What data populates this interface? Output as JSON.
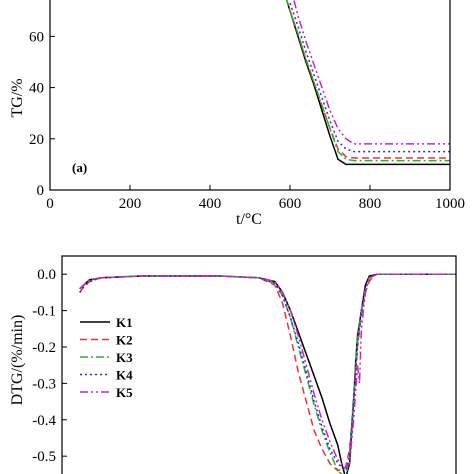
{
  "chart_data": [
    {
      "type": "line",
      "panel_label": "(a)",
      "xlabel": "t/°C",
      "ylabel": "TG/%",
      "xlim": [
        0,
        1000
      ],
      "ylim": [
        0,
        75
      ],
      "xticks": [
        "0",
        "200",
        "400",
        "600",
        "800",
        "1000"
      ],
      "yticks": [
        "0",
        "20",
        "40",
        "60"
      ],
      "series": [
        {
          "name": "K1",
          "color": "#000000",
          "dash": "solid",
          "x": [
            590,
            600,
            620,
            640,
            660,
            680,
            700,
            720,
            740,
            760,
            800,
            900,
            1000
          ],
          "y": [
            75,
            70,
            60,
            50,
            41,
            31,
            21,
            12,
            10,
            10,
            10,
            10,
            10
          ]
        },
        {
          "name": "K2",
          "color": "#e8343a",
          "dash": "dashed",
          "x": [
            590,
            600,
            620,
            640,
            660,
            680,
            700,
            720,
            740,
            760,
            800,
            900,
            1000
          ],
          "y": [
            75,
            70,
            61,
            51,
            42,
            33,
            24,
            16,
            13,
            12.5,
            12.5,
            12.5,
            12.5
          ]
        },
        {
          "name": "K3",
          "color": "#1fb81f",
          "dash": "dashdot",
          "x": [
            590,
            600,
            620,
            640,
            660,
            680,
            700,
            720,
            740,
            760,
            800,
            900,
            1000
          ],
          "y": [
            75,
            70,
            61,
            51,
            42,
            33,
            24,
            15,
            12,
            11.5,
            11.5,
            11.5,
            11.5
          ]
        },
        {
          "name": "K4",
          "color": "#2b2bd6",
          "dash": "dotted",
          "x": [
            600,
            620,
            640,
            660,
            680,
            700,
            720,
            740,
            760,
            800,
            900,
            1000
          ],
          "y": [
            73,
            64,
            54,
            45,
            36,
            27,
            19,
            16,
            15,
            15,
            15,
            15
          ]
        },
        {
          "name": "K5",
          "color": "#cc1fcc",
          "dash": "dashdotdot",
          "x": [
            610,
            620,
            640,
            660,
            680,
            700,
            720,
            740,
            760,
            800,
            900,
            1000
          ],
          "y": [
            74,
            68,
            58,
            49,
            40,
            31,
            24,
            20,
            18,
            18,
            18,
            18
          ]
        }
      ]
    },
    {
      "type": "line",
      "xlabel": "",
      "ylabel": "DTG/(%/min)",
      "xlim": [
        0,
        1000
      ],
      "ylim": [
        -0.56,
        0.05
      ],
      "yticks": [
        "0.0",
        "-0.1",
        "-0.2",
        "-0.3",
        "-0.4",
        "-0.5"
      ],
      "legend": {
        "position": "left-middle",
        "entries": [
          "K1",
          "K2",
          "K3",
          "K4",
          "K5"
        ]
      },
      "series": [
        {
          "name": "K1",
          "color": "#000000",
          "dash": "solid",
          "x": [
            45,
            55,
            70,
            100,
            200,
            400,
            500,
            540,
            560,
            580,
            600,
            620,
            640,
            660,
            680,
            700,
            710,
            720,
            730,
            740,
            745,
            750,
            760,
            770,
            780,
            800,
            900,
            1000
          ],
          "y": [
            -0.04,
            -0.03,
            -0.015,
            -0.01,
            -0.005,
            -0.005,
            -0.01,
            -0.02,
            -0.05,
            -0.1,
            -0.16,
            -0.22,
            -0.28,
            -0.34,
            -0.41,
            -0.47,
            -0.52,
            -0.56,
            -0.52,
            -0.35,
            -0.25,
            -0.17,
            -0.1,
            -0.03,
            -0.005,
            0,
            0,
            0
          ]
        },
        {
          "name": "K2",
          "color": "#e8343a",
          "dash": "dashed",
          "x": [
            45,
            55,
            70,
            100,
            200,
            400,
            500,
            540,
            560,
            580,
            600,
            620,
            640,
            660,
            680,
            700,
            720,
            730,
            740,
            750,
            760,
            770,
            780,
            790,
            800,
            900,
            1000
          ],
          "y": [
            -0.05,
            -0.035,
            -0.02,
            -0.01,
            -0.005,
            -0.005,
            -0.01,
            -0.03,
            -0.08,
            -0.17,
            -0.27,
            -0.35,
            -0.43,
            -0.48,
            -0.52,
            -0.54,
            -0.53,
            -0.48,
            -0.35,
            -0.2,
            -0.11,
            -0.05,
            -0.02,
            -0.005,
            0,
            0,
            0
          ]
        },
        {
          "name": "K3",
          "color": "#1fb81f",
          "dash": "dashdot",
          "x": [
            45,
            55,
            70,
            100,
            200,
            400,
            500,
            540,
            560,
            580,
            600,
            620,
            640,
            660,
            680,
            700,
            720,
            730,
            740,
            750,
            760,
            770,
            780,
            800,
            900,
            1000
          ],
          "y": [
            -0.04,
            -0.03,
            -0.015,
            -0.01,
            -0.005,
            -0.005,
            -0.01,
            -0.025,
            -0.06,
            -0.12,
            -0.2,
            -0.28,
            -0.36,
            -0.43,
            -0.49,
            -0.54,
            -0.56,
            -0.5,
            -0.33,
            -0.18,
            -0.1,
            -0.04,
            -0.01,
            0,
            0,
            0
          ]
        },
        {
          "name": "K4",
          "color": "#2b2bd6",
          "dash": "dotted",
          "x": [
            45,
            55,
            70,
            100,
            200,
            400,
            500,
            540,
            560,
            580,
            600,
            620,
            640,
            660,
            680,
            700,
            720,
            730,
            740,
            750,
            760,
            770,
            780,
            800,
            900,
            1000
          ],
          "y": [
            -0.05,
            -0.035,
            -0.02,
            -0.01,
            -0.005,
            -0.005,
            -0.01,
            -0.025,
            -0.06,
            -0.12,
            -0.19,
            -0.27,
            -0.35,
            -0.42,
            -0.48,
            -0.52,
            -0.54,
            -0.5,
            -0.35,
            -0.2,
            -0.1,
            -0.04,
            -0.01,
            0,
            0,
            0
          ]
        },
        {
          "name": "K5",
          "color": "#cc1fcc",
          "dash": "dashdotdot",
          "x": [
            45,
            55,
            70,
            100,
            200,
            400,
            500,
            540,
            560,
            580,
            600,
            620,
            640,
            660,
            680,
            700,
            720,
            730,
            740,
            750,
            755,
            760,
            770,
            780,
            800,
            900,
            1000
          ],
          "y": [
            -0.04,
            -0.03,
            -0.015,
            -0.01,
            -0.005,
            -0.005,
            -0.01,
            -0.02,
            -0.05,
            -0.1,
            -0.17,
            -0.25,
            -0.33,
            -0.4,
            -0.46,
            -0.51,
            -0.53,
            -0.52,
            -0.4,
            -0.25,
            -0.3,
            -0.15,
            -0.05,
            -0.01,
            0,
            0,
            0
          ]
        }
      ]
    }
  ]
}
